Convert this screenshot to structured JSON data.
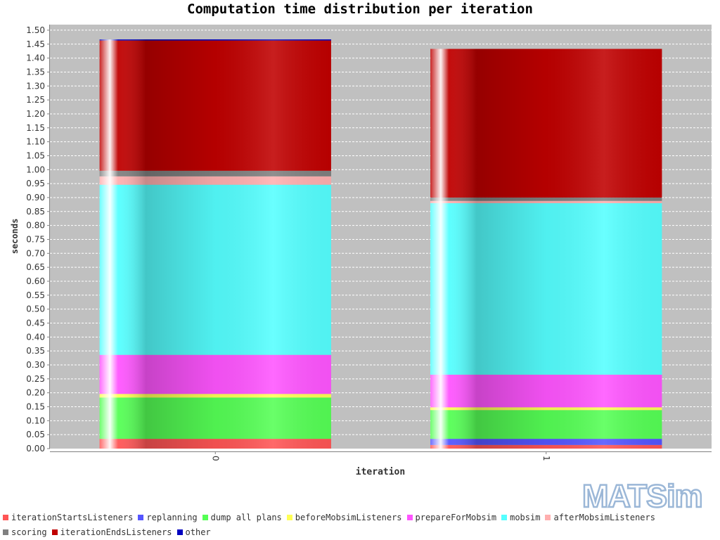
{
  "chart_data": {
    "type": "bar",
    "stacked": true,
    "title": "Computation time distribution per iteration",
    "xlabel": "iteration",
    "ylabel": "seconds",
    "ylim": [
      0,
      1.52
    ],
    "ytick_step": 0.05,
    "categories": [
      "0",
      "1"
    ],
    "grid": true,
    "legend_position": "bottom",
    "series": [
      {
        "name": "iterationStartsListeners",
        "color": "#ff5555",
        "values": [
          0.035,
          0.013
        ]
      },
      {
        "name": "replanning",
        "color": "#5555ff",
        "values": [
          0.0,
          0.022
        ]
      },
      {
        "name": "dump all plans",
        "color": "#55ff55",
        "values": [
          0.148,
          0.103
        ]
      },
      {
        "name": "beforeMobsimListeners",
        "color": "#ffff55",
        "values": [
          0.013,
          0.01
        ]
      },
      {
        "name": "prepareForMobsim",
        "color": "#ff55ff",
        "values": [
          0.14,
          0.117
        ]
      },
      {
        "name": "mobsim",
        "color": "#55ffff",
        "values": [
          0.61,
          0.615
        ]
      },
      {
        "name": "afterMobsimListeners",
        "color": "#ffafaf",
        "values": [
          0.03,
          0.008
        ]
      },
      {
        "name": "scoring",
        "color": "#808080",
        "values": [
          0.02,
          0.012
        ]
      },
      {
        "name": "iterationEndsListeners",
        "color": "#c00000",
        "values": [
          0.467,
          0.533
        ]
      },
      {
        "name": "other",
        "color": "#0000c0",
        "values": [
          0.004,
          0.0
        ]
      }
    ]
  },
  "logo_text": "MATSim"
}
